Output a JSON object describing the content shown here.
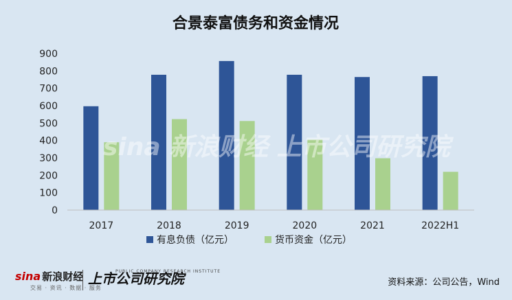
{
  "chart_data": {
    "type": "bar",
    "title": "合景泰富债务和资金情况",
    "categories": [
      "2017",
      "2018",
      "2019",
      "2020",
      "2021",
      "2022H1"
    ],
    "series": [
      {
        "name": "有息负债（亿元）",
        "color": "#2e5597",
        "values": [
          597,
          778,
          857,
          778,
          765,
          770
        ]
      },
      {
        "name": "货币资金（亿元）",
        "color": "#a9d18e",
        "values": [
          390,
          523,
          512,
          405,
          298,
          220
        ]
      }
    ],
    "ylim": [
      0,
      900
    ],
    "yticks": [
      0,
      100,
      200,
      300,
      400,
      500,
      600,
      700,
      800,
      900
    ],
    "xlabel": "",
    "ylabel": "",
    "grid": false,
    "legend_position": "bottom"
  },
  "footer": {
    "brand_sina": "sina",
    "brand_sina_cn": "新浪财经",
    "brand_sina_tags": "交易 · 资讯 · 数据 · 服务",
    "brand_institute": "上市公司研究院",
    "brand_institute_en": "PUBLIC COMPANY RESEARCH INSTITUTE",
    "source": "资料来源：公司公告，Wind"
  },
  "watermark": "sina 新浪财经    上市公司研究院"
}
